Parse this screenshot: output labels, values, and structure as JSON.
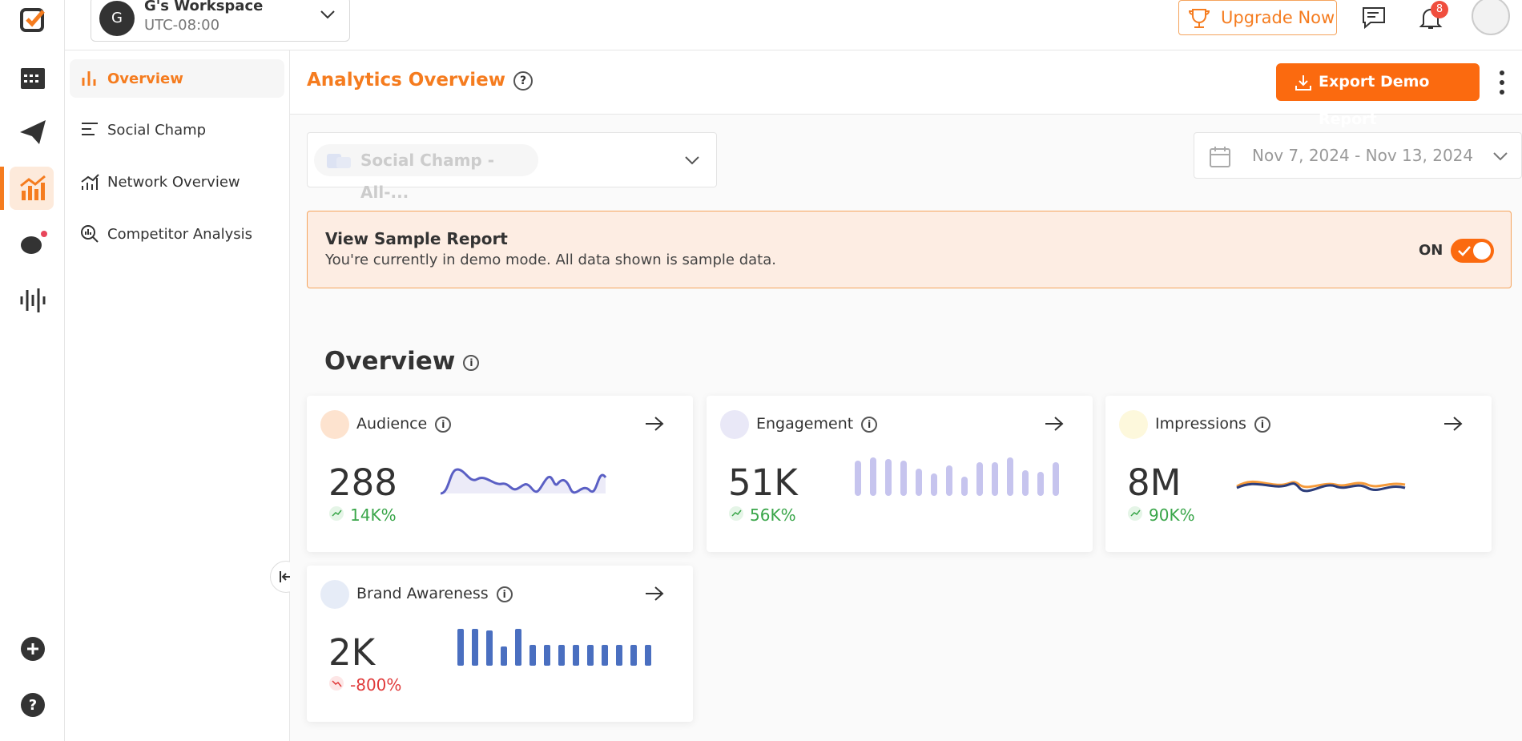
{
  "topbar": {
    "workspace_initial": "G",
    "workspace_name": "G's Workspace",
    "timezone": "UTC-08:00",
    "upgrade": "Upgrade Now",
    "notifications": "8"
  },
  "sidebar": {
    "items": [
      "Overview",
      "Social Champ",
      "Network Overview",
      "Competitor Analysis"
    ]
  },
  "header": {
    "title": "Analytics Overview",
    "export": "Export Demo Report"
  },
  "filters": {
    "account": "Social Champ - All-...",
    "date_range": "Nov 7, 2024 - Nov 13, 2024"
  },
  "banner": {
    "title": "View Sample Report",
    "text": "You're currently in demo mode. All data shown is sample data.",
    "toggle": "ON"
  },
  "overview": {
    "title": "Overview",
    "cards": [
      {
        "label": "Audience",
        "value": "288",
        "change": "14K%"
      },
      {
        "label": "Engagement",
        "value": "51K",
        "change": "56K%"
      },
      {
        "label": "Impressions",
        "value": "8M",
        "change": "90K%"
      },
      {
        "label": "Brand Awareness",
        "value": "2K",
        "change": "-800%"
      }
    ]
  }
}
